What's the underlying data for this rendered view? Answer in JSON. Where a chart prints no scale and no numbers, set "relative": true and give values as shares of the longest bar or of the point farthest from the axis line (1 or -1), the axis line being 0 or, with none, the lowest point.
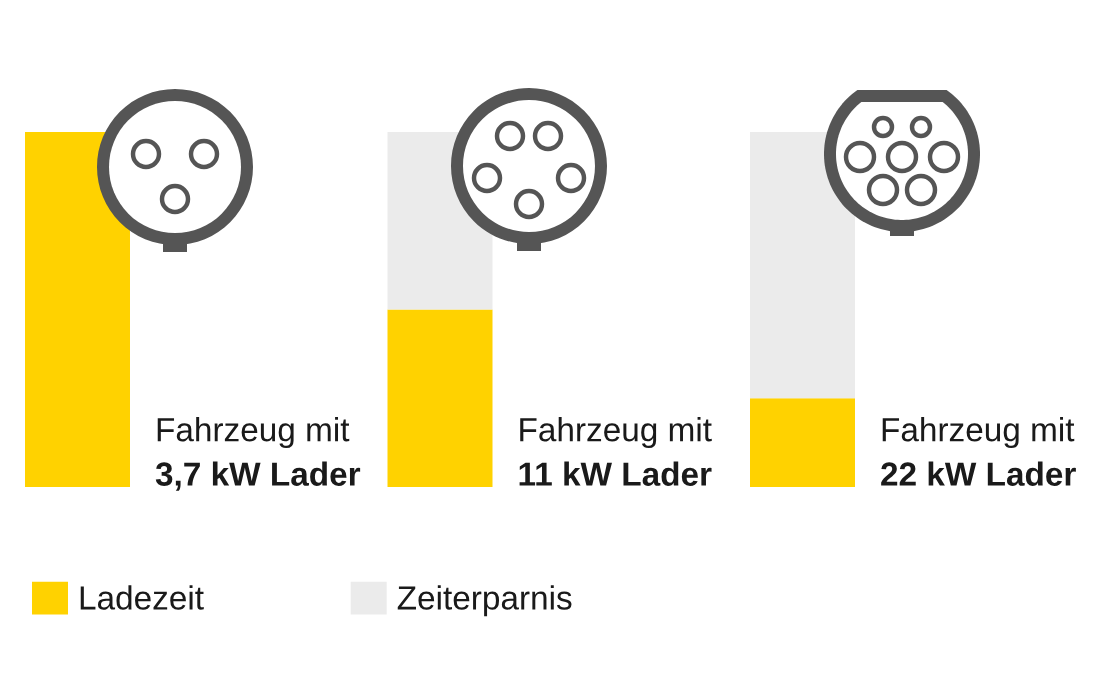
{
  "chart_data": {
    "type": "bar",
    "stacked": true,
    "relative": true,
    "legend": "bottom left",
    "categories": [
      "Fahrzeug mit\n3,7 kW Lader",
      "Fahrzeug mit\n11 kW Lader",
      "Fahrzeug mit\n22 kW Lader"
    ],
    "series": [
      {
        "name": "Ladezeit",
        "color": "#ffd200",
        "values": [
          1,
          0.5,
          0.25
        ]
      },
      {
        "name": "Zeiterparnis",
        "color": "#ebebeb",
        "values": [
          0,
          0.5,
          0.75
        ]
      }
    ]
  }
}
